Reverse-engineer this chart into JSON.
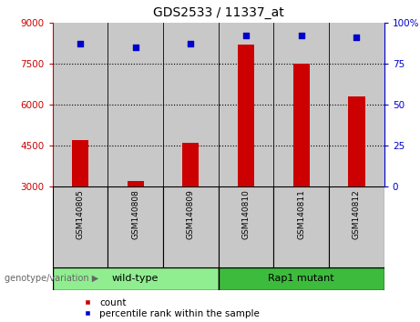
{
  "title": "GDS2533 / 11337_at",
  "samples": [
    "GSM140805",
    "GSM140808",
    "GSM140809",
    "GSM140810",
    "GSM140811",
    "GSM140812"
  ],
  "counts": [
    4700,
    3200,
    4600,
    8200,
    7500,
    6300
  ],
  "percentiles": [
    87,
    85,
    87,
    92,
    92,
    91
  ],
  "bar_color": "#cc0000",
  "dot_color": "#0000cc",
  "ylim_left": [
    3000,
    9000
  ],
  "ylim_right": [
    0,
    100
  ],
  "left_ticks": [
    3000,
    4500,
    6000,
    7500,
    9000
  ],
  "right_ticks": [
    0,
    25,
    50,
    75,
    100
  ],
  "right_tick_labels": [
    "0",
    "25",
    "50",
    "75",
    "100%"
  ],
  "groups": [
    {
      "label": "wild-type",
      "start": 0,
      "end": 3,
      "color": "#90ee90"
    },
    {
      "label": "Rap1 mutant",
      "start": 3,
      "end": 6,
      "color": "#3dbb3d"
    }
  ],
  "group_label_prefix": "genotype/variation",
  "legend_count_label": "count",
  "legend_pct_label": "percentile rank within the sample",
  "axis_left_color": "#cc0000",
  "axis_right_color": "#0000cc",
  "background_color": "#ffffff",
  "sample_bg_color": "#c8c8c8",
  "bar_width": 0.3
}
